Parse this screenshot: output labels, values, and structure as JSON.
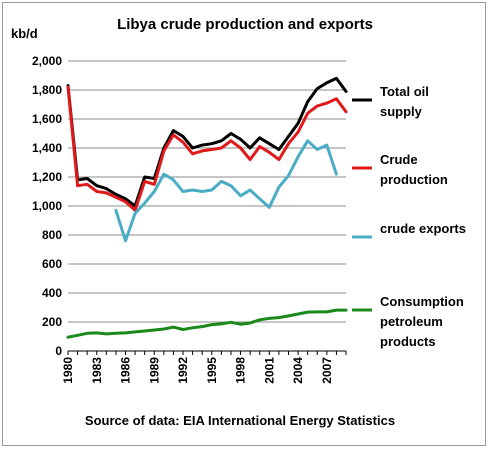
{
  "chart_data": {
    "type": "line",
    "title": "Libya crude production and exports",
    "ylabel": "kb/d",
    "xlabel": "",
    "ylim": [
      0,
      2000
    ],
    "yticks": [
      0,
      200,
      400,
      600,
      800,
      1000,
      1200,
      1400,
      1600,
      1800,
      2000
    ],
    "ytick_labels": [
      "0",
      "200",
      "400",
      "600",
      "800",
      "1,000",
      "1,200",
      "1,400",
      "1,600",
      "1,800",
      "2,000"
    ],
    "xlim": [
      1980,
      2009
    ],
    "xtick_labels": [
      "1980",
      "1983",
      "1986",
      "1989",
      "1992",
      "1995",
      "1998",
      "2001",
      "2004",
      "2007"
    ],
    "grid": true,
    "legend_placement": "right",
    "source": "Source of data: EIA International Energy Statistics",
    "series": [
      {
        "name": "Total oil supply",
        "legend_lines": [
          "Total oil",
          "supply"
        ],
        "color": "#000000",
        "x": [
          1980,
          1981,
          1982,
          1983,
          1984,
          1985,
          1986,
          1987,
          1988,
          1989,
          1990,
          1991,
          1992,
          1993,
          1994,
          1995,
          1996,
          1997,
          1998,
          1999,
          2000,
          2001,
          2002,
          2003,
          2004,
          2005,
          2006,
          2007,
          2008,
          2009
        ],
        "values": [
          1830,
          1180,
          1190,
          1140,
          1120,
          1080,
          1050,
          1000,
          1200,
          1190,
          1400,
          1520,
          1480,
          1400,
          1420,
          1430,
          1450,
          1500,
          1460,
          1400,
          1470,
          1430,
          1390,
          1480,
          1570,
          1720,
          1810,
          1850,
          1880,
          1790
        ]
      },
      {
        "name": "Crude production",
        "legend_lines": [
          "Crude",
          "production"
        ],
        "color": "#e0191a",
        "x": [
          1980,
          1981,
          1982,
          1983,
          1984,
          1985,
          1986,
          1987,
          1988,
          1989,
          1990,
          1991,
          1992,
          1993,
          1994,
          1995,
          1996,
          1997,
          1998,
          1999,
          2000,
          2001,
          2002,
          2003,
          2004,
          2005,
          2006,
          2007,
          2008,
          2009
        ],
        "values": [
          1820,
          1140,
          1150,
          1100,
          1090,
          1060,
          1030,
          970,
          1170,
          1150,
          1380,
          1490,
          1440,
          1360,
          1380,
          1390,
          1400,
          1450,
          1400,
          1320,
          1410,
          1370,
          1320,
          1430,
          1510,
          1640,
          1690,
          1710,
          1740,
          1650
        ]
      },
      {
        "name": "crude exports",
        "legend_lines": [
          "crude exports"
        ],
        "color": "#4bacc6",
        "x": [
          1985,
          1986,
          1987,
          1988,
          1989,
          1990,
          1991,
          1992,
          1993,
          1994,
          1995,
          1996,
          1997,
          1998,
          1999,
          2000,
          2001,
          2002,
          2003,
          2004,
          2005,
          2006,
          2007,
          2008
        ],
        "values": [
          970,
          760,
          950,
          1020,
          1100,
          1220,
          1180,
          1100,
          1110,
          1100,
          1110,
          1170,
          1140,
          1070,
          1110,
          1050,
          990,
          1130,
          1210,
          1340,
          1450,
          1390,
          1420,
          1220
        ]
      },
      {
        "name": "Consumption petroleum products",
        "legend_lines": [
          "Consumption",
          "petroleum",
          "products"
        ],
        "color": "#1a8a1a",
        "x": [
          1980,
          1981,
          1982,
          1983,
          1984,
          1985,
          1986,
          1987,
          1988,
          1989,
          1990,
          1991,
          1992,
          1993,
          1994,
          1995,
          1996,
          1997,
          1998,
          1999,
          2000,
          2001,
          2002,
          2003,
          2004,
          2005,
          2006,
          2007,
          2008,
          2009
        ],
        "values": [
          95,
          108,
          122,
          125,
          118,
          122,
          125,
          132,
          138,
          145,
          152,
          165,
          148,
          160,
          168,
          182,
          187,
          198,
          185,
          193,
          215,
          225,
          230,
          242,
          255,
          268,
          270,
          270,
          282,
          282
        ]
      }
    ]
  }
}
